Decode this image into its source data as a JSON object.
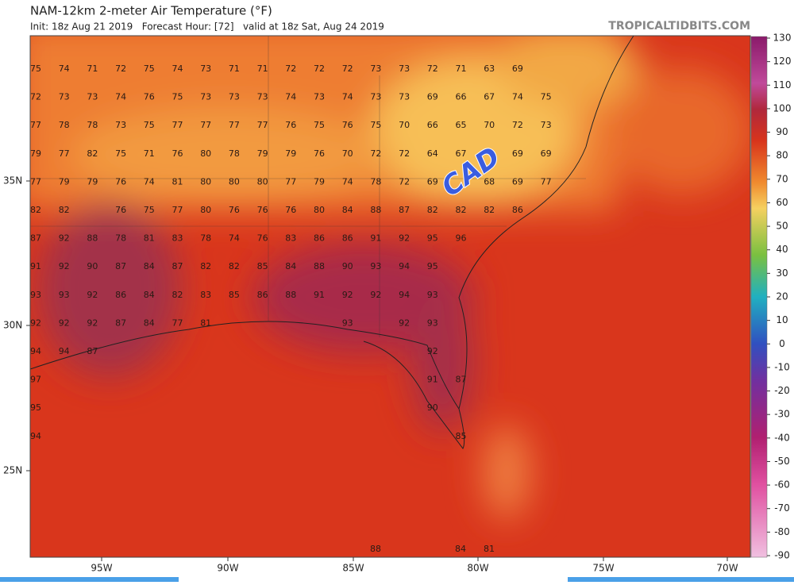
{
  "header": {
    "title": "NAM-12km 2-meter Air Temperature (°F)",
    "subtitle": "Init: 18z Aug 21 2019   Forecast Hour: [72]   valid at 18z Sat, Aug 24 2019",
    "credit": "TROPICALTIDBITS.COM"
  },
  "map": {
    "latitude_labels": [
      "35N",
      "30N",
      "25N"
    ],
    "longitude_labels": [
      "95W",
      "90W",
      "85W",
      "80W",
      "75W",
      "70W"
    ],
    "annotation": "CAD",
    "station_values": [
      [
        75,
        74,
        71,
        72,
        75,
        74,
        73,
        71,
        71,
        72,
        72,
        72,
        73,
        73,
        72,
        71,
        63,
        69,
        null
      ],
      [
        72,
        73,
        73,
        74,
        76,
        75,
        73,
        73,
        73,
        74,
        73,
        74,
        73,
        73,
        69,
        66,
        67,
        74,
        75
      ],
      [
        77,
        78,
        78,
        73,
        75,
        77,
        77,
        77,
        77,
        76,
        75,
        76,
        75,
        70,
        66,
        65,
        70,
        72,
        73
      ],
      [
        79,
        77,
        82,
        75,
        71,
        76,
        80,
        78,
        79,
        79,
        76,
        70,
        72,
        72,
        64,
        67,
        null,
        69,
        69
      ],
      [
        77,
        79,
        79,
        76,
        74,
        81,
        80,
        80,
        80,
        77,
        79,
        74,
        78,
        72,
        69,
        null,
        68,
        69,
        77
      ],
      [
        82,
        82,
        null,
        76,
        75,
        77,
        80,
        76,
        76,
        76,
        80,
        84,
        88,
        87,
        82,
        82,
        82,
        86,
        null
      ],
      [
        87,
        92,
        88,
        78,
        81,
        83,
        78,
        74,
        76,
        83,
        86,
        86,
        91,
        92,
        95,
        96,
        null,
        null,
        null
      ],
      [
        91,
        92,
        90,
        87,
        84,
        87,
        82,
        82,
        85,
        84,
        88,
        90,
        93,
        94,
        95,
        null,
        null,
        null,
        null
      ],
      [
        93,
        93,
        92,
        86,
        84,
        82,
        83,
        85,
        86,
        88,
        91,
        92,
        92,
        94,
        93,
        null,
        null,
        null,
        null
      ],
      [
        92,
        92,
        92,
        87,
        84,
        77,
        81,
        null,
        null,
        null,
        null,
        93,
        null,
        92,
        93,
        null,
        null,
        null,
        null
      ],
      [
        94,
        94,
        87,
        null,
        null,
        null,
        null,
        null,
        null,
        null,
        null,
        null,
        null,
        null,
        92,
        null,
        null,
        null,
        null
      ],
      [
        97,
        null,
        null,
        null,
        null,
        null,
        null,
        null,
        null,
        null,
        null,
        null,
        null,
        null,
        91,
        87,
        null,
        null,
        null
      ],
      [
        95,
        null,
        null,
        null,
        null,
        null,
        null,
        null,
        null,
        null,
        null,
        null,
        null,
        null,
        90,
        null,
        null,
        null,
        null
      ],
      [
        94,
        null,
        null,
        null,
        null,
        null,
        null,
        null,
        null,
        null,
        null,
        null,
        null,
        null,
        null,
        85,
        null,
        null,
        null
      ]
    ],
    "bottom_values": [
      88,
      84,
      81
    ]
  },
  "colorbar": {
    "ticks": [
      130,
      120,
      110,
      100,
      90,
      80,
      70,
      60,
      50,
      40,
      30,
      20,
      10,
      0,
      -10,
      -20,
      -30,
      -40,
      -50,
      -60,
      -70,
      -80,
      -90
    ]
  }
}
